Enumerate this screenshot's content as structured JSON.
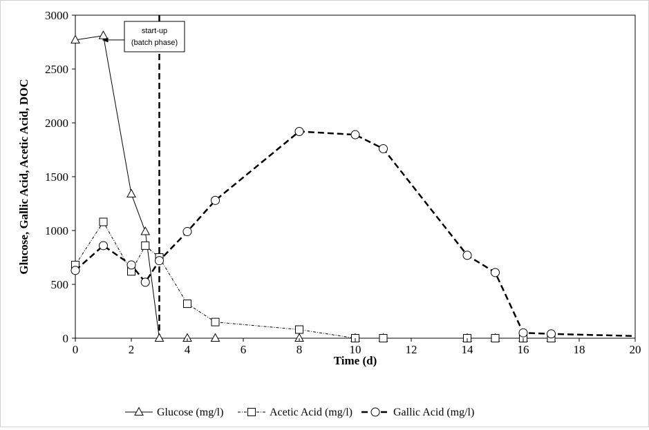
{
  "chart_data": {
    "type": "line",
    "xlabel": "Time (d)",
    "ylabel": "Glucose, Gallic Acid, Acetic Acid, DOC",
    "xlim": [
      0,
      20
    ],
    "ylim": [
      0,
      3000
    ],
    "xticks": [
      0,
      2,
      4,
      6,
      8,
      10,
      12,
      14,
      16,
      18,
      20
    ],
    "yticks": [
      0,
      500,
      1000,
      1500,
      2000,
      2500,
      3000
    ],
    "grid": false,
    "legend_position": "bottom",
    "series": [
      {
        "name": "Glucose (mg/l)",
        "marker": "triangle",
        "line_style": "solid-thin",
        "color": "#000000",
        "points": [
          [
            0,
            2770
          ],
          [
            1,
            2810
          ],
          [
            2,
            1340
          ],
          [
            2.5,
            990
          ],
          [
            3,
            0
          ],
          [
            4,
            0
          ],
          [
            5,
            0
          ],
          [
            8,
            0
          ],
          [
            10,
            0
          ],
          [
            11,
            0
          ],
          [
            14,
            0
          ],
          [
            15,
            0
          ],
          [
            16,
            0
          ],
          [
            17,
            0
          ]
        ]
      },
      {
        "name": "Acetic Acid (mg/l)",
        "marker": "square",
        "line_style": "dash-dot-thin",
        "color": "#000000",
        "points": [
          [
            0,
            680
          ],
          [
            1,
            1080
          ],
          [
            2,
            620
          ],
          [
            2.5,
            860
          ],
          [
            3,
            750
          ],
          [
            4,
            320
          ],
          [
            5,
            150
          ],
          [
            8,
            80
          ],
          [
            10,
            0
          ],
          [
            11,
            0
          ],
          [
            14,
            0
          ],
          [
            15,
            0
          ],
          [
            16,
            0
          ],
          [
            17,
            0
          ]
        ]
      },
      {
        "name": "Gallic Acid (mg/l)",
        "marker": "circle",
        "line_style": "dashed-thick",
        "color": "#000000",
        "points": [
          [
            0,
            630
          ],
          [
            1,
            860
          ],
          [
            2,
            680
          ],
          [
            2.5,
            520
          ],
          [
            3,
            720
          ],
          [
            4,
            990
          ],
          [
            5,
            1280
          ],
          [
            8,
            1920
          ],
          [
            10,
            1890
          ],
          [
            11,
            1760
          ],
          [
            14,
            770
          ],
          [
            15,
            610
          ],
          [
            16,
            50
          ],
          [
            17,
            40
          ],
          [
            20,
            20
          ]
        ]
      }
    ],
    "reference_line": {
      "x": 3,
      "style": "dashed"
    },
    "annotation": {
      "line1": "start-up",
      "line2": "(batch phase)",
      "points_to": [
        1,
        2770
      ]
    }
  }
}
